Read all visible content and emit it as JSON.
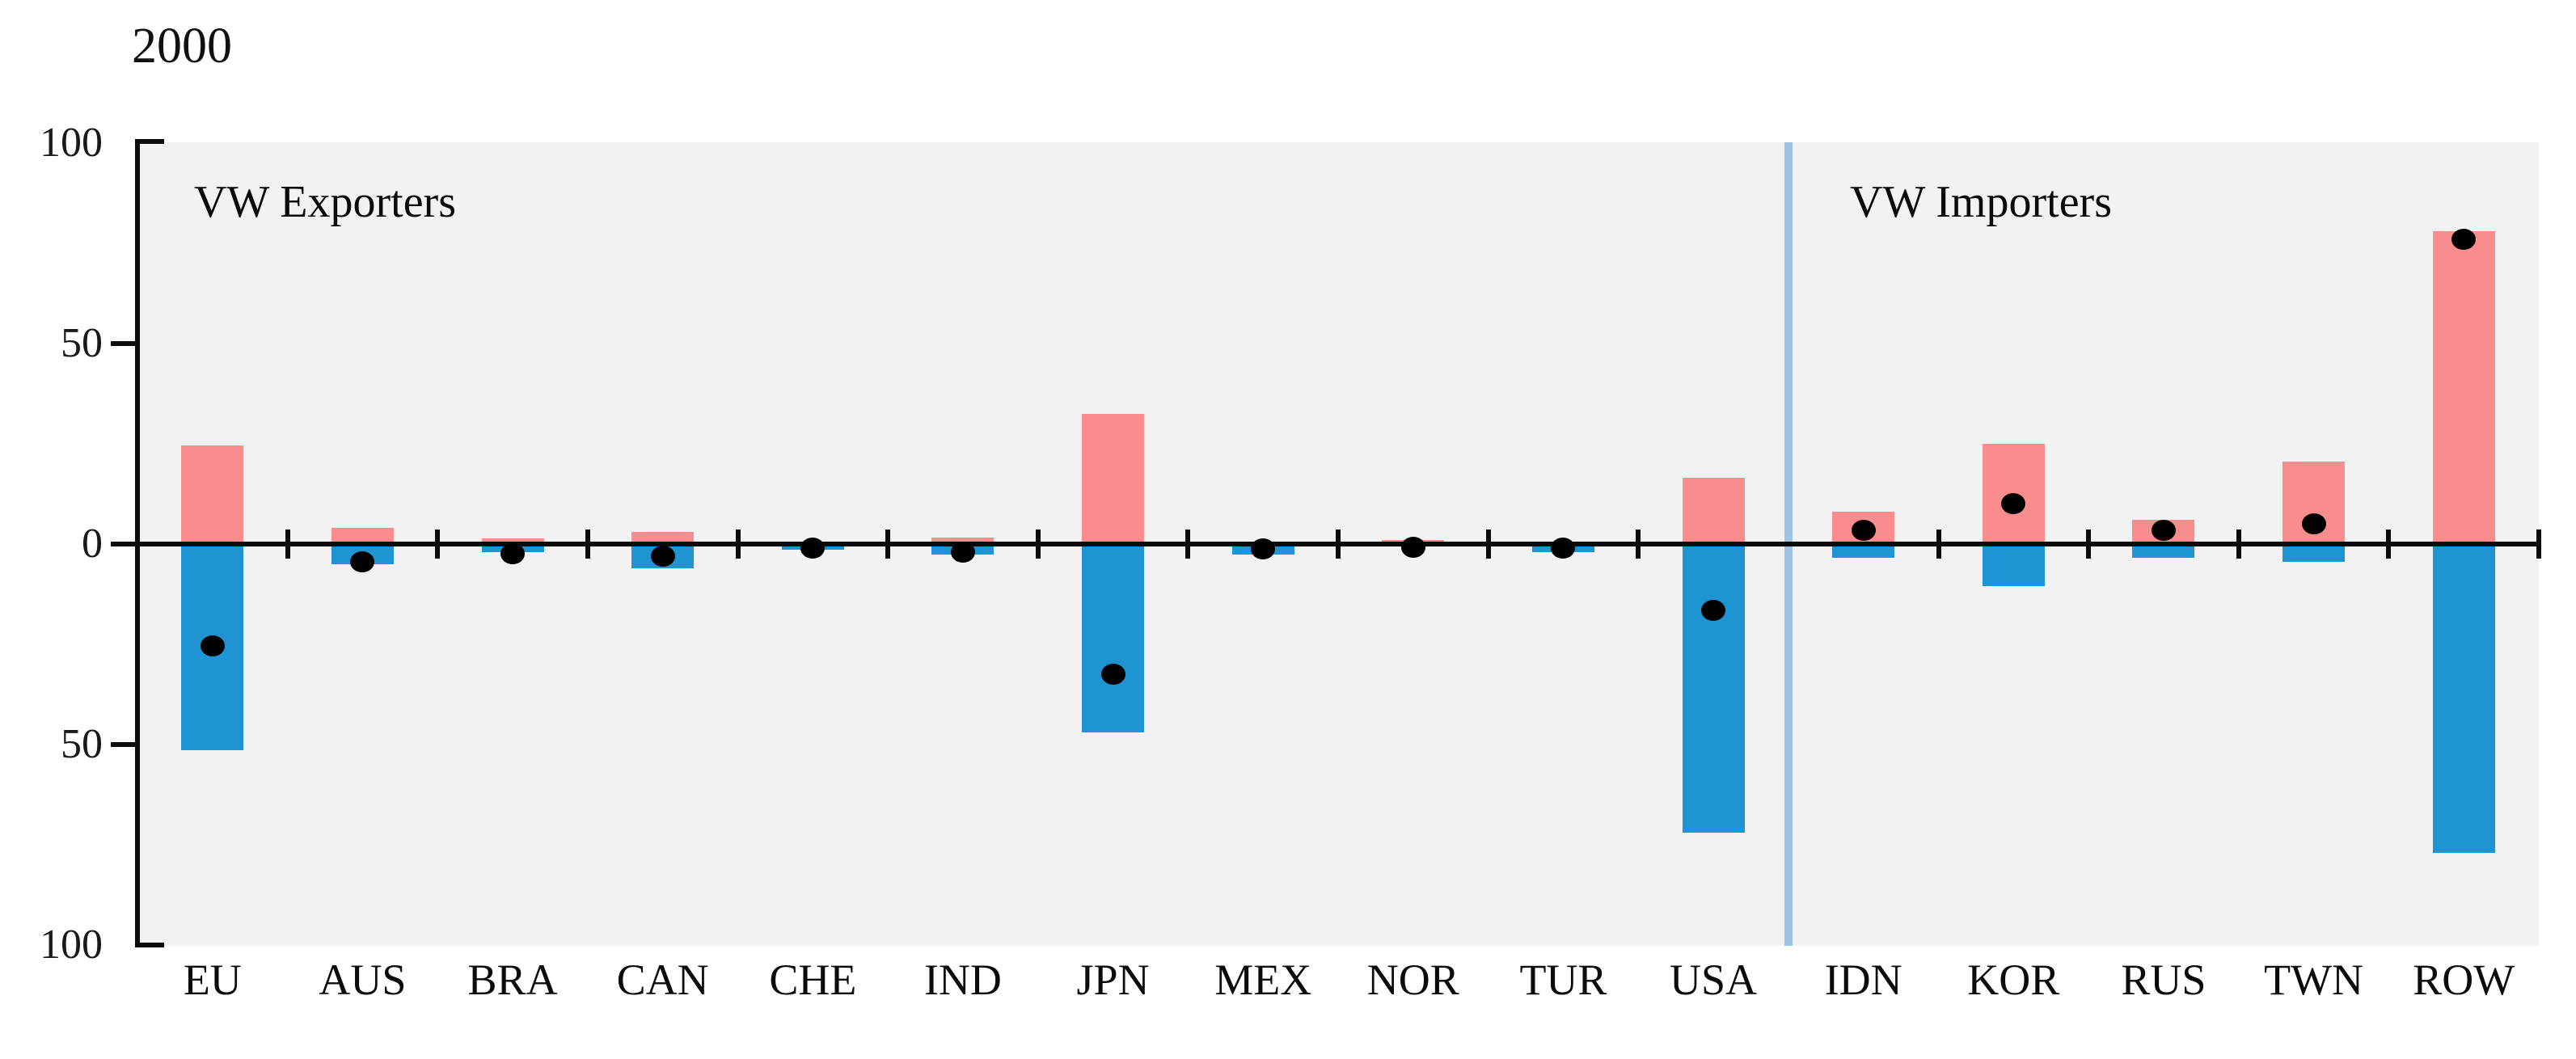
{
  "chart_data": {
    "type": "bar",
    "title": "2000",
    "categories": [
      "EU",
      "AUS",
      "BRA",
      "CAN",
      "CHE",
      "IND",
      "JPN",
      "MEX",
      "NOR",
      "TUR",
      "USA",
      "IDN",
      "KOR",
      "RUS",
      "TWN",
      "ROW"
    ],
    "series": [
      {
        "name": "pink_bars_above_axis",
        "color": "#F98C8C",
        "values": [
          24.5,
          4,
          1.5,
          3,
          0.4,
          1.7,
          32.5,
          0.3,
          1,
          0.4,
          16.5,
          8,
          25,
          6,
          20.5,
          78
        ]
      },
      {
        "name": "blue_bars_below_axis",
        "color": "#1E95D2",
        "values": [
          -51.5,
          -5,
          -2,
          -6,
          -1.5,
          -2.6,
          -47,
          -2.7,
          -0.6,
          -2,
          -72,
          -3.5,
          -10.5,
          -3.5,
          -4.5,
          -77
        ]
      },
      {
        "name": "net_dots",
        "color": "#000000",
        "values": [
          -25.5,
          -4.5,
          -2.5,
          -3,
          -1,
          -2,
          -32.5,
          -1.3,
          -0.8,
          -1,
          -16.5,
          3.5,
          10,
          3.5,
          5,
          76
        ]
      }
    ],
    "y_axis": {
      "tick_labels": [
        "100",
        "50",
        "0",
        "50",
        "100"
      ],
      "tick_values": [
        100,
        50,
        0,
        -50,
        -100
      ],
      "ylim": [
        -100,
        100
      ]
    },
    "sections": [
      {
        "label": "VW Exporters",
        "categories": [
          "EU",
          "AUS",
          "BRA",
          "CAN",
          "CHE",
          "IND",
          "JPN",
          "MEX",
          "NOR",
          "TUR",
          "USA"
        ]
      },
      {
        "label": "VW Importers",
        "categories": [
          "IDN",
          "KOR",
          "RUS",
          "TWN",
          "ROW"
        ]
      }
    ],
    "divider_after_category": "USA",
    "legend": "none",
    "grid": "off"
  },
  "styles": {
    "pink": "#F98C8C",
    "blue": "#1E95D2",
    "divider_blue": "#9DC3E6",
    "plot_bg": "#F2F2F2",
    "axis_color": "#0b0b0b"
  }
}
